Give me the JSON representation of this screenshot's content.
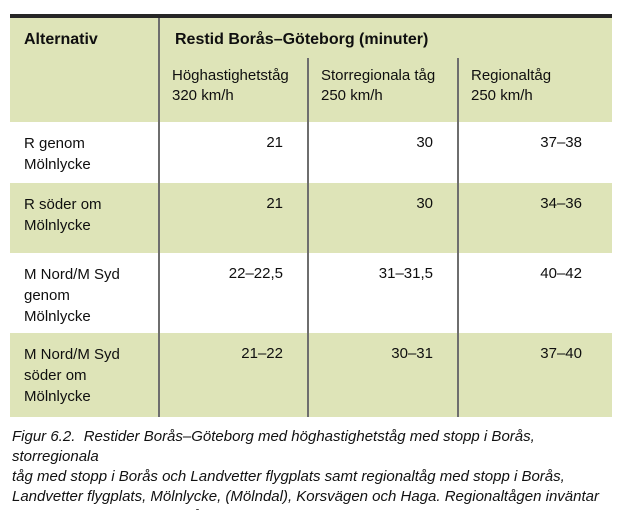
{
  "figure": {
    "table": {
      "corner_header": "Alternativ",
      "group_header": "Restid Borås–Göteborg (minuter)",
      "column_headers": [
        "Höghastighetståg\n320 km/h",
        "Storregionala tåg\n250 km/h",
        "Regionaltåg\n250 km/h"
      ],
      "rows": [
        {
          "label": "R genom\nMölnlycke",
          "values": [
            "21",
            "30",
            "37–38"
          ]
        },
        {
          "label": "R söder om\nMölnlycke",
          "values": [
            "21",
            "30",
            "34–36"
          ]
        },
        {
          "label": "M Nord/M Syd\ngenom\nMölnlycke",
          "values": [
            "22–22,5",
            "31–31,5",
            "40–42"
          ]
        },
        {
          "label": "M Nord/M Syd\nsöder om\nMölnlycke",
          "values": [
            "21–22",
            "30–31",
            "37–40"
          ]
        }
      ]
    },
    "caption": "Figur 6.2.  Restider Borås–Göteborg med höghastighetståg med stopp i Borås, storregionala\ntåg med stopp i Borås och Landvetter flygplats samt regionaltåg med stopp i Borås,\nLandvetter flygplats, Mölnlycke, (Mölndal), Korsvägen och Haga. Regionaltågen inväntar\npasserande höghastighetståg i Mölnlycke.",
    "colors": {
      "band_green": "#dee4b8",
      "grid_line": "#6e6e6e",
      "top_border": "#262626",
      "text": "#0f0f0f"
    }
  }
}
